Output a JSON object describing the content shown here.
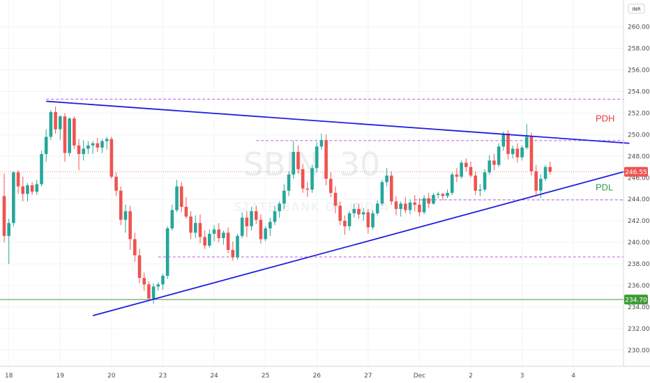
{
  "chart_data": {
    "type": "candlestick",
    "symbol_watermark": "SBIN, 30",
    "name_watermark": "STATE BANK OF INDIA",
    "currency": "INR",
    "ylim": [
      228.5,
      262.5
    ],
    "y_ticks": [
      "230.00",
      "232.00",
      "234.00",
      "236.00",
      "238.00",
      "240.00",
      "242.00",
      "244.00",
      "246.00",
      "248.00",
      "250.00",
      "252.00",
      "254.00",
      "256.00",
      "258.00",
      "260.00"
    ],
    "x_ticks": [
      {
        "label": "18",
        "index": 1
      },
      {
        "label": "19",
        "index": 12
      },
      {
        "label": "20",
        "index": 23
      },
      {
        "label": "23",
        "index": 34
      },
      {
        "label": "24",
        "index": 45
      },
      {
        "label": "25",
        "index": 56
      },
      {
        "label": "26",
        "index": 67
      },
      {
        "label": "27",
        "index": 78
      },
      {
        "label": "Dec",
        "index": 89
      },
      {
        "label": "2",
        "index": 100
      },
      {
        "label": "3",
        "index": 111
      },
      {
        "label": "4",
        "index": 122
      }
    ],
    "last_price": {
      "label": "246.55",
      "value": 246.55
    },
    "level_line": {
      "label": "234.70",
      "value": 234.7
    },
    "horizontal_levels": [
      253.3,
      249.45,
      243.95,
      238.65
    ],
    "trendlines": [
      {
        "from": [
          9,
          253.1
        ],
        "to": [
          134,
          249.2
        ]
      },
      {
        "from": [
          19,
          233.2
        ],
        "to": [
          134,
          246.7
        ]
      }
    ],
    "annotations": [
      {
        "text": "PDH",
        "value": 251.5,
        "color": "#e53935"
      },
      {
        "text": "PDL",
        "value": 245.1,
        "color": "#2e9d4e"
      }
    ],
    "candles": [
      [
        244.3,
        246.4,
        240.0,
        240.6
      ],
      [
        240.6,
        242.2,
        238.0,
        241.8
      ],
      [
        241.8,
        246.6,
        241.5,
        246.5
      ],
      [
        246.5,
        246.7,
        244.5,
        245.2
      ],
      [
        245.2,
        246.1,
        243.8,
        244.5
      ],
      [
        244.5,
        245.5,
        243.8,
        245.3
      ],
      [
        245.3,
        245.6,
        244.4,
        244.7
      ],
      [
        244.7,
        245.8,
        244.4,
        245.4
      ],
      [
        245.4,
        248.5,
        245.2,
        248.2
      ],
      [
        248.2,
        250.5,
        247.5,
        249.8
      ],
      [
        249.8,
        252.3,
        249.5,
        252.1
      ],
      [
        252.1,
        252.6,
        250.1,
        250.5
      ],
      [
        250.5,
        251.8,
        249.5,
        251.7
      ],
      [
        251.7,
        252.0,
        247.5,
        248.3
      ],
      [
        248.3,
        251.6,
        248.0,
        251.5
      ],
      [
        251.5,
        251.7,
        248.7,
        249.0
      ],
      [
        249.0,
        249.6,
        246.7,
        248.2
      ],
      [
        248.2,
        249.5,
        247.6,
        248.7
      ],
      [
        248.7,
        249.4,
        248.2,
        249.0
      ],
      [
        249.0,
        249.4,
        248.2,
        249.2
      ],
      [
        249.2,
        249.7,
        248.4,
        248.8
      ],
      [
        248.8,
        249.6,
        248.3,
        249.4
      ],
      [
        249.4,
        249.8,
        248.6,
        249.6
      ],
      [
        249.6,
        249.8,
        245.9,
        246.1
      ],
      [
        246.1,
        246.5,
        244.3,
        244.8
      ],
      [
        244.8,
        245.2,
        241.6,
        242.1
      ],
      [
        242.1,
        243.5,
        240.9,
        242.9
      ],
      [
        242.9,
        243.4,
        239.3,
        240.3
      ],
      [
        240.3,
        240.9,
        238.2,
        238.8
      ],
      [
        238.8,
        239.4,
        236.2,
        236.7
      ],
      [
        236.7,
        237.2,
        235.5,
        236.1
      ],
      [
        236.1,
        236.4,
        234.6,
        234.8
      ],
      [
        234.8,
        236.2,
        234.3,
        235.9
      ],
      [
        235.9,
        236.3,
        235.5,
        236.1
      ],
      [
        236.1,
        237.1,
        235.6,
        236.9
      ],
      [
        236.9,
        241.5,
        236.6,
        241.3
      ],
      [
        241.3,
        243.5,
        241.1,
        243.0
      ],
      [
        243.0,
        245.8,
        242.8,
        245.2
      ],
      [
        245.2,
        245.6,
        242.8,
        243.3
      ],
      [
        243.3,
        244.2,
        242.2,
        242.4
      ],
      [
        242.4,
        242.9,
        240.3,
        240.9
      ],
      [
        240.9,
        242.5,
        240.4,
        241.8
      ],
      [
        241.8,
        242.6,
        239.9,
        240.5
      ],
      [
        240.5,
        241.1,
        239.4,
        239.7
      ],
      [
        239.7,
        241.2,
        239.5,
        240.8
      ],
      [
        240.8,
        241.6,
        240.1,
        241.2
      ],
      [
        241.2,
        241.8,
        240.0,
        240.4
      ],
      [
        240.4,
        241.1,
        239.8,
        240.9
      ],
      [
        240.9,
        241.4,
        239.0,
        239.3
      ],
      [
        239.3,
        240.1,
        238.3,
        238.6
      ],
      [
        238.6,
        240.8,
        238.4,
        240.6
      ],
      [
        240.6,
        242.8,
        240.4,
        242.3
      ],
      [
        242.3,
        242.9,
        240.5,
        241.5
      ],
      [
        241.5,
        243.3,
        241.1,
        242.9
      ],
      [
        242.9,
        243.4,
        241.7,
        242.1
      ],
      [
        242.1,
        242.6,
        239.9,
        240.3
      ],
      [
        240.3,
        241.5,
        240.1,
        241.3
      ],
      [
        241.3,
        242.3,
        240.6,
        241.9
      ],
      [
        241.9,
        243.4,
        241.6,
        242.9
      ],
      [
        242.9,
        243.8,
        242.3,
        243.6
      ],
      [
        243.6,
        245.4,
        243.1,
        244.8
      ],
      [
        244.8,
        246.6,
        244.3,
        246.3
      ],
      [
        246.3,
        249.4,
        245.9,
        248.4
      ],
      [
        248.4,
        249.0,
        246.4,
        246.8
      ],
      [
        246.8,
        247.3,
        244.6,
        245.0
      ],
      [
        245.0,
        245.6,
        244.2,
        244.9
      ],
      [
        244.9,
        247.2,
        244.6,
        246.9
      ],
      [
        246.9,
        249.3,
        246.5,
        248.9
      ],
      [
        248.9,
        250.1,
        248.6,
        249.5
      ],
      [
        249.5,
        250.0,
        245.3,
        245.9
      ],
      [
        245.9,
        246.5,
        244.2,
        244.6
      ],
      [
        244.6,
        245.2,
        242.7,
        243.4
      ],
      [
        243.4,
        243.8,
        241.6,
        242.0
      ],
      [
        242.0,
        242.5,
        240.7,
        241.5
      ],
      [
        241.5,
        242.9,
        241.1,
        242.7
      ],
      [
        242.7,
        243.6,
        242.3,
        243.1
      ],
      [
        243.1,
        243.6,
        242.2,
        242.6
      ],
      [
        242.6,
        243.2,
        242.0,
        242.8
      ],
      [
        242.8,
        243.1,
        240.8,
        241.4
      ],
      [
        241.4,
        243.0,
        241.2,
        242.7
      ],
      [
        242.7,
        243.9,
        242.5,
        243.6
      ],
      [
        243.6,
        245.8,
        243.4,
        245.6
      ],
      [
        245.6,
        246.9,
        245.2,
        246.2
      ],
      [
        246.2,
        246.6,
        243.5,
        243.8
      ],
      [
        243.8,
        244.3,
        242.5,
        243.1
      ],
      [
        243.1,
        243.8,
        242.4,
        243.6
      ],
      [
        243.6,
        244.2,
        242.7,
        243.0
      ],
      [
        243.0,
        244.0,
        242.6,
        243.7
      ],
      [
        243.7,
        244.4,
        242.9,
        243.5
      ],
      [
        243.5,
        244.1,
        242.4,
        242.8
      ],
      [
        242.8,
        244.4,
        242.6,
        244.1
      ],
      [
        244.1,
        244.6,
        243.2,
        243.6
      ],
      [
        243.6,
        244.6,
        243.5,
        244.4
      ],
      [
        244.4,
        244.7,
        244.1,
        244.5
      ],
      [
        244.5,
        244.6,
        243.9,
        244.3
      ],
      [
        244.3,
        244.9,
        244.1,
        244.6
      ],
      [
        244.6,
        246.5,
        244.4,
        246.3
      ],
      [
        246.3,
        246.9,
        245.6,
        246.1
      ],
      [
        246.1,
        247.6,
        245.9,
        247.4
      ],
      [
        247.4,
        247.8,
        246.6,
        247.0
      ],
      [
        247.0,
        247.5,
        246.0,
        246.2
      ],
      [
        246.2,
        246.6,
        244.4,
        244.8
      ],
      [
        244.8,
        245.4,
        244.3,
        244.9
      ],
      [
        244.9,
        246.8,
        244.7,
        246.5
      ],
      [
        246.5,
        248.1,
        246.3,
        247.6
      ],
      [
        247.6,
        248.2,
        246.7,
        247.2
      ],
      [
        247.2,
        249.2,
        247.0,
        248.9
      ],
      [
        248.9,
        250.3,
        248.5,
        250.1
      ],
      [
        250.1,
        250.4,
        247.7,
        248.2
      ],
      [
        248.2,
        249.0,
        247.8,
        248.7
      ],
      [
        248.7,
        249.2,
        247.4,
        247.9
      ],
      [
        247.9,
        249.0,
        247.6,
        248.8
      ],
      [
        248.8,
        251.0,
        248.6,
        249.8
      ],
      [
        249.8,
        250.2,
        246.2,
        246.6
      ],
      [
        246.6,
        247.2,
        244.3,
        244.8
      ],
      [
        244.8,
        246.3,
        244.1,
        245.9
      ],
      [
        245.9,
        247.2,
        245.7,
        247.0
      ],
      [
        247.0,
        247.5,
        246.3,
        246.55
      ]
    ]
  }
}
